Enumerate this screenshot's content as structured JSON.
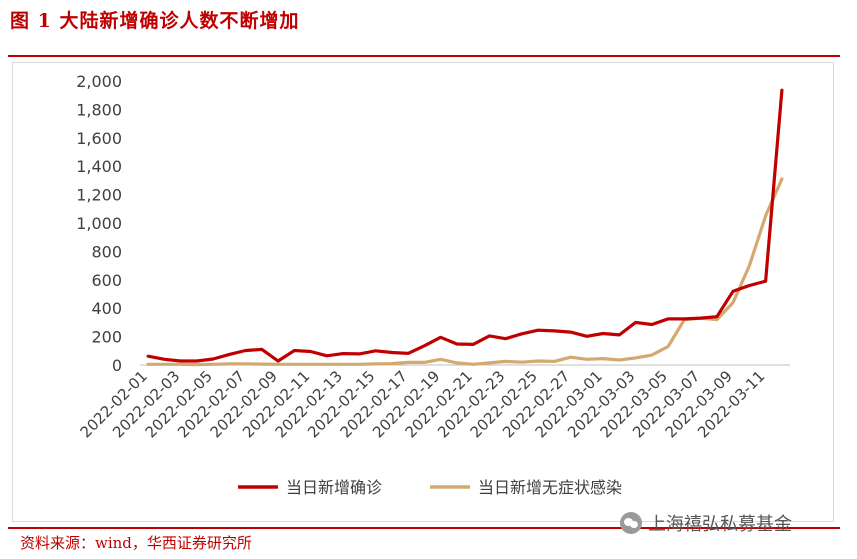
{
  "header": {
    "title": "图 1  大陆新增确诊人数不断增加"
  },
  "footer": {
    "source": "资料来源：wind，华西证券研究所",
    "watermark": "上海禧弘私募基金"
  },
  "chart_data": {
    "type": "line",
    "title": "",
    "xlabel": "",
    "ylabel": "",
    "ylim": [
      0,
      2000
    ],
    "y_ticks": [
      "0",
      "200",
      "400",
      "600",
      "800",
      "1,000",
      "1,200",
      "1,400",
      "1,600",
      "1,800",
      "2,000"
    ],
    "x_tick_labels": [
      "2022-02-01",
      "2022-02-03",
      "2022-02-05",
      "2022-02-07",
      "2022-02-09",
      "2022-02-11",
      "2022-02-13",
      "2022-02-15",
      "2022-02-17",
      "2022-02-19",
      "2022-02-21",
      "2022-02-23",
      "2022-02-25",
      "2022-02-27",
      "2022-03-01",
      "2022-03-03",
      "2022-03-05",
      "2022-03-07",
      "2022-03-09",
      "2022-03-11"
    ],
    "x": [
      "2022-02-01",
      "2022-02-02",
      "2022-02-03",
      "2022-02-04",
      "2022-02-05",
      "2022-02-06",
      "2022-02-07",
      "2022-02-08",
      "2022-02-09",
      "2022-02-10",
      "2022-02-11",
      "2022-02-12",
      "2022-02-13",
      "2022-02-14",
      "2022-02-15",
      "2022-02-16",
      "2022-02-17",
      "2022-02-18",
      "2022-02-19",
      "2022-02-20",
      "2022-02-21",
      "2022-02-22",
      "2022-02-23",
      "2022-02-24",
      "2022-02-25",
      "2022-02-26",
      "2022-02-27",
      "2022-02-28",
      "2022-03-01",
      "2022-03-02",
      "2022-03-03",
      "2022-03-04",
      "2022-03-05",
      "2022-03-06",
      "2022-03-07",
      "2022-03-08",
      "2022-03-09",
      "2022-03-10",
      "2022-03-11",
      "2022-03-12"
    ],
    "legend_position": "bottom",
    "grid": false,
    "series": [
      {
        "name": "当日新增确诊",
        "color": "#c00000",
        "values": [
          62,
          40,
          28,
          28,
          42,
          75,
          102,
          110,
          28,
          102,
          95,
          65,
          80,
          78,
          100,
          88,
          82,
          135,
          195,
          148,
          145,
          205,
          185,
          220,
          245,
          240,
          232,
          202,
          222,
          212,
          300,
          285,
          325,
          325,
          330,
          340,
          520,
          560,
          590,
          1935
        ]
      },
      {
        "name": "当日新增无症状感染",
        "color": "#d4a970",
        "values": [
          5,
          5,
          5,
          3,
          5,
          8,
          8,
          6,
          5,
          5,
          5,
          5,
          5,
          5,
          8,
          10,
          18,
          18,
          40,
          15,
          5,
          15,
          25,
          20,
          28,
          25,
          55,
          40,
          45,
          35,
          50,
          70,
          130,
          320,
          330,
          320,
          440,
          700,
          1050,
          1310
        ]
      }
    ]
  }
}
